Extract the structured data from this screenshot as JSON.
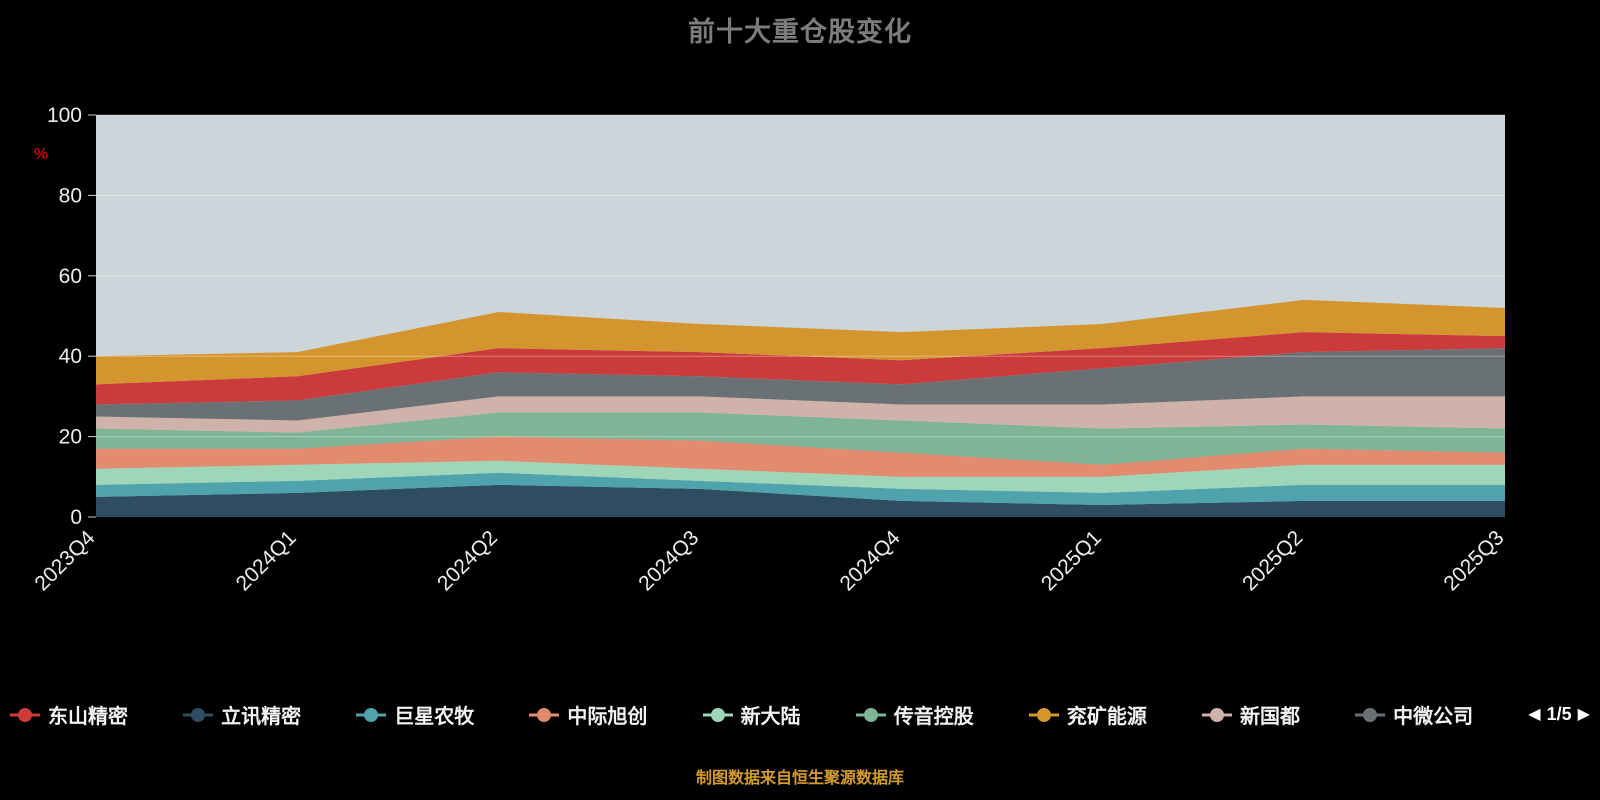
{
  "title": "前十大重仓股变化",
  "caption": "制图数据来自恒生聚源数据库",
  "axes": {
    "y_name": "%",
    "y_ticks": [
      0,
      20,
      40,
      60,
      80,
      100
    ],
    "y_max": 100
  },
  "legend": {
    "order": [
      "东山精密",
      "立讯精密",
      "巨星农牧",
      "中际旭创",
      "新大陆",
      "传音控股",
      "兖矿能源",
      "新国都",
      "中微公司"
    ],
    "pagination": {
      "current": "1/5",
      "prev_icon": "left-arrow",
      "next_icon": "right-arrow"
    }
  },
  "chart_data": {
    "type": "area",
    "stacked": true,
    "title": "前十大重仓股变化",
    "ylabel": "%",
    "ylim": [
      0,
      100
    ],
    "grid": true,
    "plot_bg": "#ccd5da",
    "x": [
      "2023Q4",
      "2024Q1",
      "2024Q2",
      "2024Q3",
      "2024Q4",
      "2025Q1",
      "2025Q2",
      "2025Q3"
    ],
    "stack_order": "bottom-to-top",
    "series": [
      {
        "name": "立讯精密",
        "color": "#2f4d60",
        "values": [
          5,
          6,
          8,
          7,
          4,
          3,
          4,
          4
        ]
      },
      {
        "name": "巨星农牧",
        "color": "#4fa3ad",
        "values": [
          3,
          3,
          3,
          2,
          3,
          3,
          4,
          4
        ]
      },
      {
        "name": "新大陆",
        "color": "#9fd6b8",
        "values": [
          4,
          4,
          3,
          3,
          3,
          4,
          5,
          5
        ]
      },
      {
        "name": "中际旭创",
        "color": "#e38b6f",
        "values": [
          5,
          4,
          6,
          7,
          6,
          3,
          4,
          3
        ]
      },
      {
        "name": "传音控股",
        "color": "#7fb596",
        "values": [
          5,
          4,
          6,
          7,
          8,
          9,
          6,
          6
        ]
      },
      {
        "name": "新国都",
        "color": "#cfb2a9",
        "values": [
          3,
          3,
          4,
          4,
          4,
          6,
          7,
          8
        ]
      },
      {
        "name": "中微公司",
        "color": "#697175",
        "values": [
          3,
          5,
          6,
          5,
          5,
          9,
          11,
          12
        ]
      },
      {
        "name": "东山精密",
        "color": "#cb3b3b",
        "values": [
          5,
          6,
          6,
          6,
          6,
          5,
          5,
          3
        ]
      },
      {
        "name": "兖矿能源",
        "color": "#d4952e",
        "values": [
          7,
          6,
          9,
          7,
          7,
          6,
          8,
          7
        ]
      }
    ],
    "totals": [
      40,
      41,
      51,
      48,
      46,
      48,
      54,
      52
    ],
    "legend_position": "bottom"
  }
}
